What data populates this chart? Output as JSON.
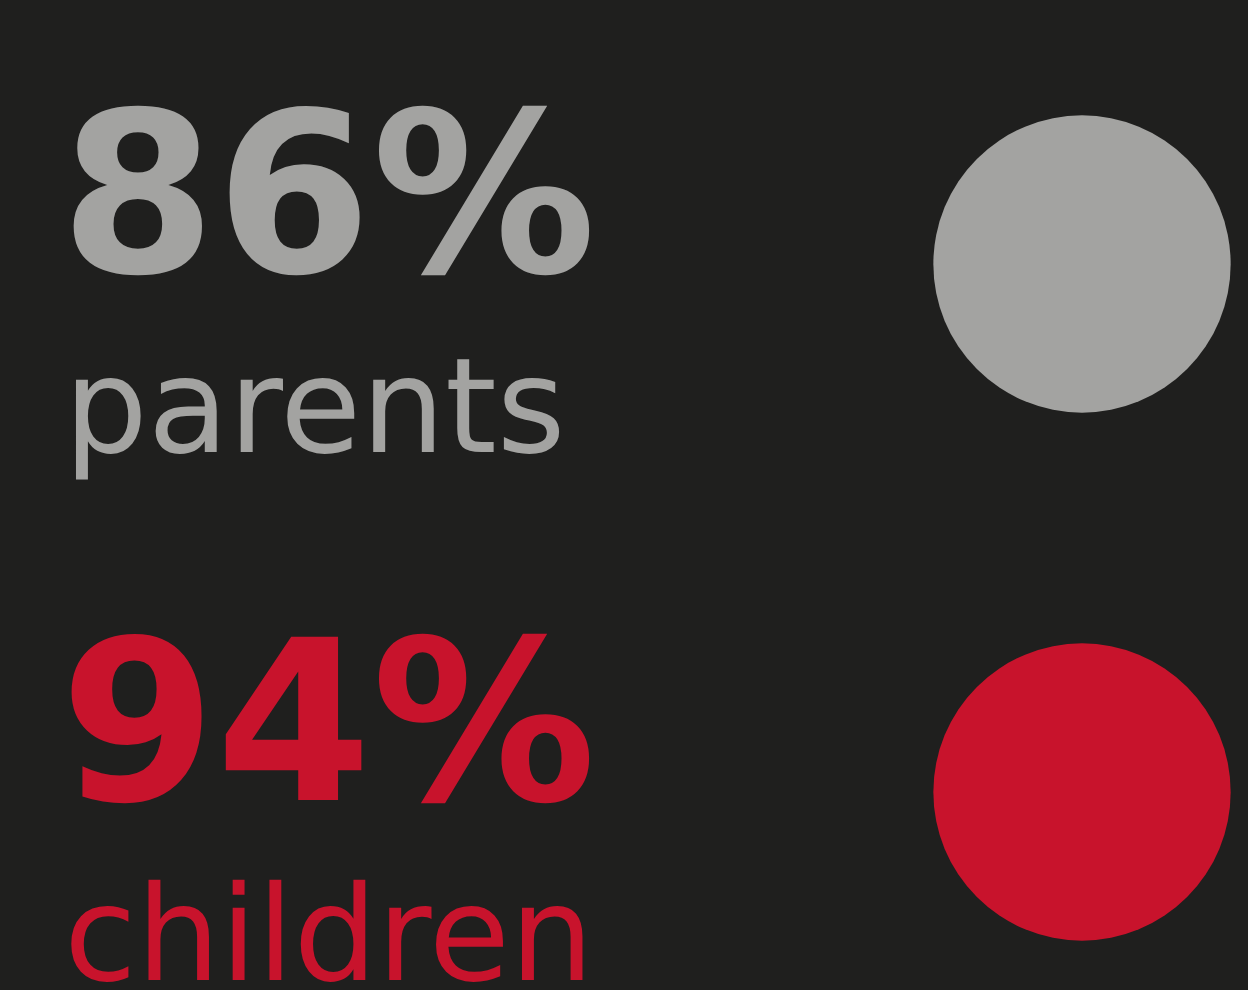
{
  "chart_data": {
    "type": "other",
    "categories": [
      "parents",
      "children"
    ],
    "values": [
      86,
      94
    ],
    "value_labels": [
      "86%",
      "94%"
    ],
    "colors": [
      "#a3a3a1",
      "#c8132c"
    ]
  }
}
